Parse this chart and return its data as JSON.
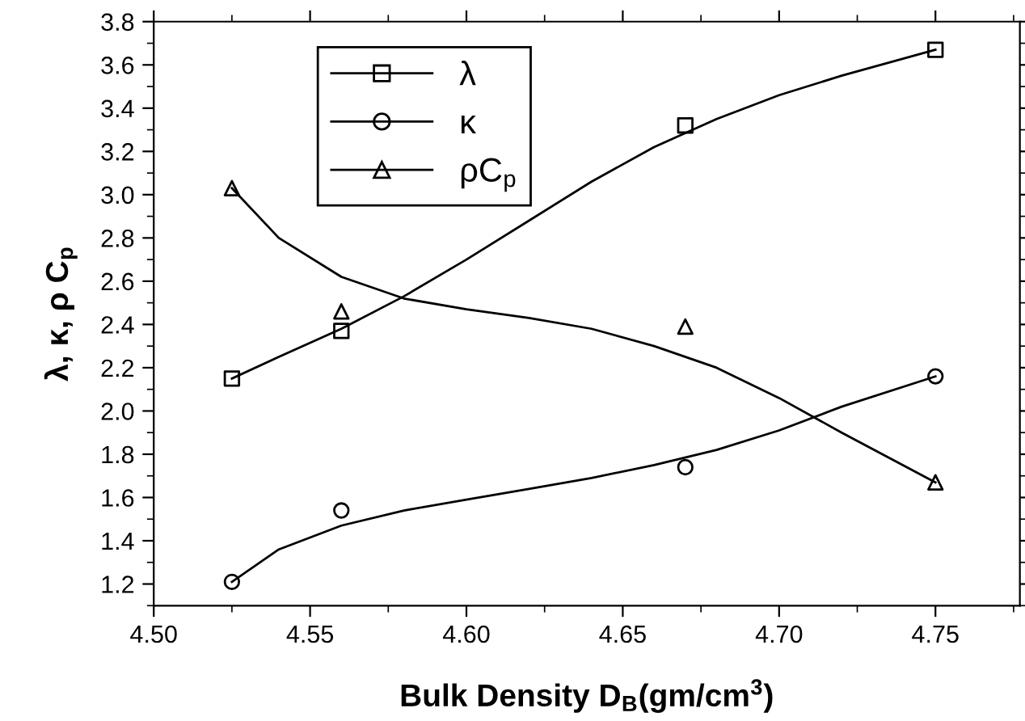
{
  "chart_data": {
    "type": "scatter",
    "xlabel": "Bulk Density D$_{B}$(gm/cm$^{3}$)",
    "ylabel": "λ, κ, ρ C$_{p}$",
    "xlim": [
      4.5,
      4.777
    ],
    "xticks": [
      {
        "value": 4.5,
        "label": "4.50"
      },
      4.55,
      {
        "value": 4.6,
        "label": "4.60"
      },
      4.65,
      {
        "value": 4.7,
        "label": "4.70"
      },
      4.75
    ],
    "ylim": [
      1.1,
      3.8
    ],
    "yticks": [
      1.2,
      1.4,
      1.6,
      1.8,
      {
        "value": 2,
        "label": "2.0"
      },
      2.2,
      2.4,
      2.6,
      2.8,
      {
        "value": 3,
        "label": "3.0"
      },
      3.2,
      3.4,
      3.6,
      3.8
    ],
    "legend": "top left",
    "grid": false,
    "series": [
      {
        "name": "λ",
        "marker": "square",
        "color": "#000000",
        "x": [
          4.525,
          4.56,
          4.67,
          4.75
        ],
        "values": [
          2.15,
          2.37,
          3.32,
          3.67
        ]
      },
      {
        "name": "κ",
        "marker": "circle",
        "color": "#000000",
        "x": [
          4.525,
          4.56,
          4.67,
          4.75
        ],
        "values": [
          1.21,
          1.54,
          1.74,
          2.16
        ]
      },
      {
        "name": "ρC$_{p}$",
        "marker": "triangle",
        "color": "#000000",
        "x": [
          4.525,
          4.56,
          4.67,
          4.75
        ],
        "values": [
          3.03,
          2.46,
          2.39,
          1.67
        ]
      },
      {
        "type": "line",
        "color": "#000000",
        "x": [
          4.525,
          4.54,
          4.56,
          4.58,
          4.6,
          4.62,
          4.64,
          4.66,
          4.68,
          4.7,
          4.72,
          4.75
        ],
        "values": [
          2.15,
          2.25,
          2.38,
          2.53,
          2.7,
          2.88,
          3.06,
          3.22,
          3.35,
          3.46,
          3.55,
          3.67
        ]
      },
      {
        "type": "line",
        "color": "#000000",
        "x": [
          4.525,
          4.54,
          4.56,
          4.58,
          4.6,
          4.62,
          4.64,
          4.66,
          4.68,
          4.7,
          4.72,
          4.75
        ],
        "values": [
          1.21,
          1.36,
          1.47,
          1.54,
          1.59,
          1.64,
          1.69,
          1.75,
          1.82,
          1.91,
          2.02,
          2.16
        ]
      },
      {
        "type": "line",
        "color": "#000000",
        "x": [
          4.525,
          4.54,
          4.56,
          4.58,
          4.6,
          4.62,
          4.64,
          4.66,
          4.68,
          4.7,
          4.72,
          4.75
        ],
        "values": [
          3.03,
          2.8,
          2.62,
          2.52,
          2.47,
          2.43,
          2.38,
          2.3,
          2.2,
          2.06,
          1.9,
          1.67
        ]
      }
    ]
  }
}
